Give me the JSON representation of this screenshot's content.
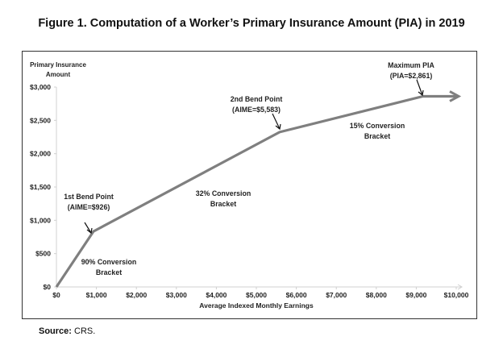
{
  "title": "Figure 1. Computation of a Worker’s Primary Insurance Amount (PIA) in 2019",
  "source_label": "Source:",
  "source_value": "CRS.",
  "chart_data": {
    "type": "line",
    "xlabel": "Average Indexed Monthly Earnings",
    "ylabel_line1": "Primary Insurance",
    "ylabel_line2": "Amount",
    "xlim": [
      0,
      10000
    ],
    "ylim": [
      0,
      3000
    ],
    "xticks": [
      "$0",
      "$1,000",
      "$2,000",
      "$3,000",
      "$4,000",
      "$5,000",
      "$6,000",
      "$7,000",
      "$8,000",
      "$9,000",
      "$10,000"
    ],
    "yticks": [
      "$0",
      "$500",
      "$1,000",
      "$1,500",
      "$2,000",
      "$2,500",
      "$3,000"
    ],
    "grid": false,
    "line_color": "#7f7f7f",
    "series": [
      {
        "x": [
          0,
          926,
          5583,
          9166,
          10000
        ],
        "y": [
          0,
          833,
          2324,
          2861,
          2861
        ],
        "arrow_end": true
      }
    ],
    "annotations": [
      {
        "lines": [
          "1st Bend Point",
          "(AIME=$926)"
        ],
        "sup": "st",
        "x": 926,
        "y": 833
      },
      {
        "lines": [
          "2nd Bend Point",
          "(AIME=$5,583)"
        ],
        "sup": "nd",
        "x": 5583,
        "y": 2324
      },
      {
        "lines": [
          "Maximum PIA",
          "(PIA=$2,861)"
        ],
        "x": 9166,
        "y": 2861
      },
      {
        "lines": [
          "90% Conversion",
          "Bracket"
        ]
      },
      {
        "lines": [
          "32% Conversion",
          "Bracket"
        ]
      },
      {
        "lines": [
          "15% Conversion",
          "Bracket"
        ]
      }
    ]
  }
}
